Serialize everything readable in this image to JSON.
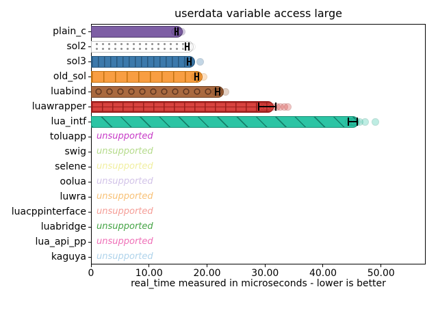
{
  "chart_data": {
    "type": "bar",
    "orientation": "horizontal",
    "title": "userdata variable access large",
    "xlabel": "real_time measured in microseconds - lower is better",
    "xlim": [
      0,
      57.7
    ],
    "grid": false,
    "legend": "none",
    "xticks": {
      "values": [
        0,
        10,
        20,
        30,
        40,
        50
      ],
      "labels": [
        "0",
        "10.00",
        "20.00",
        "30.00",
        "40.00",
        "50.00"
      ]
    },
    "unsupported_label": "unsupported",
    "categories": [
      "plain_c",
      "sol2",
      "sol3",
      "old_sol",
      "luabind",
      "luawrapper",
      "lua_intf",
      "toluapp",
      "swig",
      "selene",
      "oolua",
      "luwra",
      "luacppinterface",
      "luabridge",
      "lua_api_pp",
      "kaguya"
    ],
    "rows": [
      {
        "label": "plain_c",
        "value": 14.7,
        "error": 0.35,
        "scatter": [
          14.4,
          14.6,
          14.75,
          14.9,
          15.05,
          15.3,
          15.6
        ],
        "style": {
          "face": "#7E5FA5",
          "edge": "#4D3A6B",
          "hatch": "none",
          "hatchColor": "#4D3A6B"
        }
      },
      {
        "label": "sol2",
        "value": 16.6,
        "error": 0.4,
        "scatter": [
          16.3,
          16.5,
          16.65,
          16.8,
          17.0,
          17.4
        ],
        "style": {
          "face": "#FEFEFE",
          "edge": "#C2C2C2",
          "hatch": "dots",
          "hatchColor": "#8F8F8F"
        }
      },
      {
        "label": "sol3",
        "value": 16.9,
        "error": 0.4,
        "scatter": [
          16.6,
          16.8,
          16.95,
          17.1,
          17.3,
          18.8
        ],
        "style": {
          "face": "#3C79AB",
          "edge": "#27567C",
          "hatch": "vlines",
          "hatchColor": "#27567C"
        }
      },
      {
        "label": "old_sol",
        "value": 18.2,
        "error": 0.4,
        "scatter": [
          17.9,
          18.1,
          18.25,
          18.4,
          18.6,
          19.4
        ],
        "style": {
          "face": "#F89E42",
          "edge": "#C1700F",
          "hatch": "vlines-wide",
          "hatchColor": "#C1700F"
        }
      },
      {
        "label": "luabind",
        "value": 21.8,
        "error": 0.5,
        "scatter": [
          21.4,
          21.7,
          21.85,
          22.0,
          22.3,
          23.2
        ],
        "style": {
          "face": "#A9693F",
          "edge": "#6B3D1E",
          "hatch": "rings",
          "hatchColor": "#5E3620"
        }
      },
      {
        "label": "luawrapper",
        "value": 30.4,
        "error": 1.6,
        "scatter": [
          29.2,
          29.8,
          30.3,
          30.8,
          31.4,
          32.0,
          32.6,
          33.3,
          33.9
        ],
        "style": {
          "face": "#D8423E",
          "edge": "#9A1F1C",
          "hatch": "cross",
          "hatchColor": "#9A1F1C"
        }
      },
      {
        "label": "lua_intf",
        "value": 45.1,
        "error": 0.9,
        "scatter": [
          44.4,
          44.8,
          45.1,
          45.4,
          45.8,
          46.3,
          47.2,
          49.0
        ],
        "style": {
          "face": "#2CC4A4",
          "edge": "#178F75",
          "hatch": "diag",
          "hatchColor": "#147F6A"
        }
      },
      {
        "label": "toluapp",
        "value": null,
        "status": "unsupported",
        "color": "#C73BC7"
      },
      {
        "label": "swig",
        "value": null,
        "status": "unsupported",
        "color": "#B5DB8B"
      },
      {
        "label": "selene",
        "value": null,
        "status": "unsupported",
        "color": "#F1EFA1"
      },
      {
        "label": "oolua",
        "value": null,
        "status": "unsupported",
        "color": "#D2C3E8"
      },
      {
        "label": "luwra",
        "value": null,
        "status": "unsupported",
        "color": "#F8C176"
      },
      {
        "label": "luacppinterface",
        "value": null,
        "status": "unsupported",
        "color": "#F59D97"
      },
      {
        "label": "luabridge",
        "value": null,
        "status": "unsupported",
        "color": "#44A344"
      },
      {
        "label": "lua_api_pp",
        "value": null,
        "status": "unsupported",
        "color": "#EF6FB7"
      },
      {
        "label": "kaguya",
        "value": null,
        "status": "unsupported",
        "color": "#AFD3EB"
      }
    ]
  }
}
